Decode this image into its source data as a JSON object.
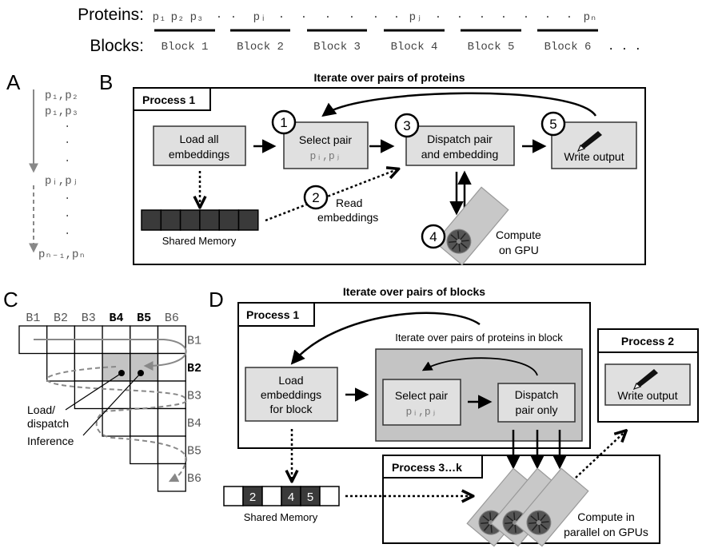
{
  "top": {
    "proteins_label": "Proteins:",
    "blocks_label": "Blocks:",
    "proteins": [
      "p₁",
      "p₂",
      "p₃",
      "·",
      "·",
      "pᵢ",
      "·",
      "·",
      "·",
      "·",
      "·",
      "·",
      "pⱼ",
      "·",
      "·",
      "·",
      "·",
      "·",
      "·",
      "·",
      "pₙ"
    ],
    "blocks": [
      "Block 1",
      "Block 2",
      "Block 3",
      "Block 4",
      "Block 5",
      "Block 6"
    ],
    "blocks_ellipsis": ". . ."
  },
  "panel_a": {
    "letter": "A",
    "pairs": [
      "p₁,p₂",
      "p₁,p₃",
      "·",
      "·",
      "·",
      "pᵢ,pⱼ",
      "·",
      "·",
      "·",
      "pₙ₋₁,pₙ"
    ]
  },
  "panel_b": {
    "letter": "B",
    "title": "Iterate over pairs of proteins",
    "process_label": "Process 1",
    "load": [
      "Load all",
      "embeddings"
    ],
    "select": [
      "Select pair",
      "pᵢ,pⱼ"
    ],
    "dispatch": [
      "Dispatch pair",
      "and embedding"
    ],
    "write": "Write output",
    "read": [
      "Read",
      "embeddings"
    ],
    "compute": [
      "Compute",
      "on GPU"
    ],
    "shared_memory": "Shared Memory",
    "steps": [
      "1",
      "2",
      "3",
      "4",
      "5"
    ]
  },
  "panel_c": {
    "letter": "C",
    "columns": [
      "B1",
      "B2",
      "B3",
      "B4",
      "B5",
      "B6"
    ],
    "rows": [
      "B1",
      "B2",
      "B3",
      "B4",
      "B5",
      "B6"
    ],
    "bold_columns": [
      "B4",
      "B5"
    ],
    "bold_rows": [
      "B2"
    ],
    "highlighted_cells": [
      [
        "B2",
        "B4"
      ],
      [
        "B2",
        "B5"
      ]
    ],
    "load_label": [
      "Load/",
      "dispatch"
    ],
    "inference_label": "Inference"
  },
  "panel_d": {
    "letter": "D",
    "title": "Iterate over pairs of blocks",
    "process1_label": "Process 1",
    "inner_title": "Iterate over pairs of proteins in block",
    "load": [
      "Load",
      "embeddings",
      "for block"
    ],
    "select": [
      "Select pair",
      "pᵢ,pⱼ"
    ],
    "dispatch": [
      "Dispatch",
      "pair only"
    ],
    "process2_label": "Process 2",
    "write": "Write output",
    "process3_label": "Process 3…k",
    "compute": [
      "Compute in",
      "parallel on GPUs"
    ],
    "shared_memory": "Shared Memory",
    "memory_slots": [
      "",
      "2",
      "",
      "4",
      "5",
      ""
    ]
  },
  "colors": {
    "box_fill": "#e0e0e0",
    "inner_fill": "#c4c4c4",
    "memory_fill": "#3a3a3a",
    "arrow_grey": "#888888",
    "gpu_fill": "#c8c8c8"
  }
}
